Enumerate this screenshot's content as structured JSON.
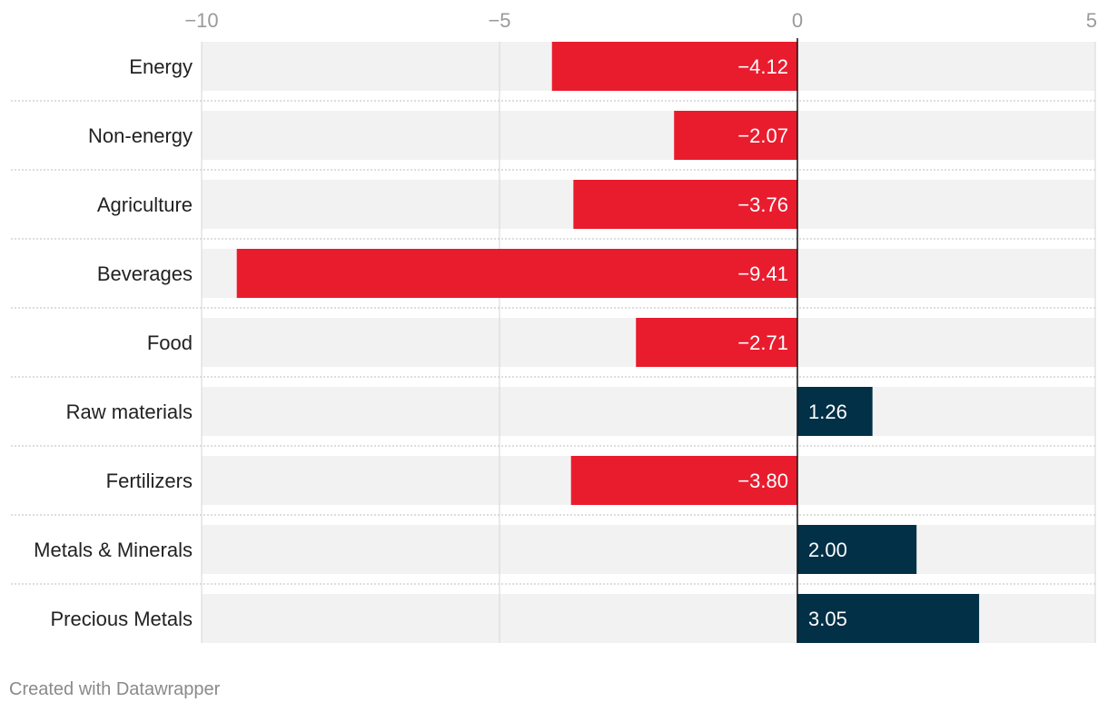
{
  "chart_data": {
    "type": "bar",
    "orientation": "horizontal",
    "categories": [
      "Energy",
      "Non-energy",
      "Agriculture",
      "Beverages",
      "Food",
      "Raw materials",
      "Fertilizers",
      "Metals & Minerals",
      "Precious Metals"
    ],
    "values": [
      -4.12,
      -2.07,
      -3.76,
      -9.41,
      -2.71,
      1.26,
      -3.8,
      2.0,
      3.05
    ],
    "value_labels": [
      "−4.12",
      "−2.07",
      "−3.76",
      "−9.41",
      "−2.71",
      "1.26",
      "−3.80",
      "2.00",
      "3.05"
    ],
    "xlim": [
      -10,
      5
    ],
    "xticks": [
      -10,
      -5,
      0,
      5
    ],
    "xtick_labels": [
      "−10",
      "−5",
      "0",
      "5"
    ],
    "colors": {
      "negative": "#e91c2e",
      "positive": "#023047",
      "background_band": "#f2f2f2",
      "grid": "#d6d6d6"
    },
    "grid": true
  },
  "footer": {
    "credit": "Created with Datawrapper"
  }
}
